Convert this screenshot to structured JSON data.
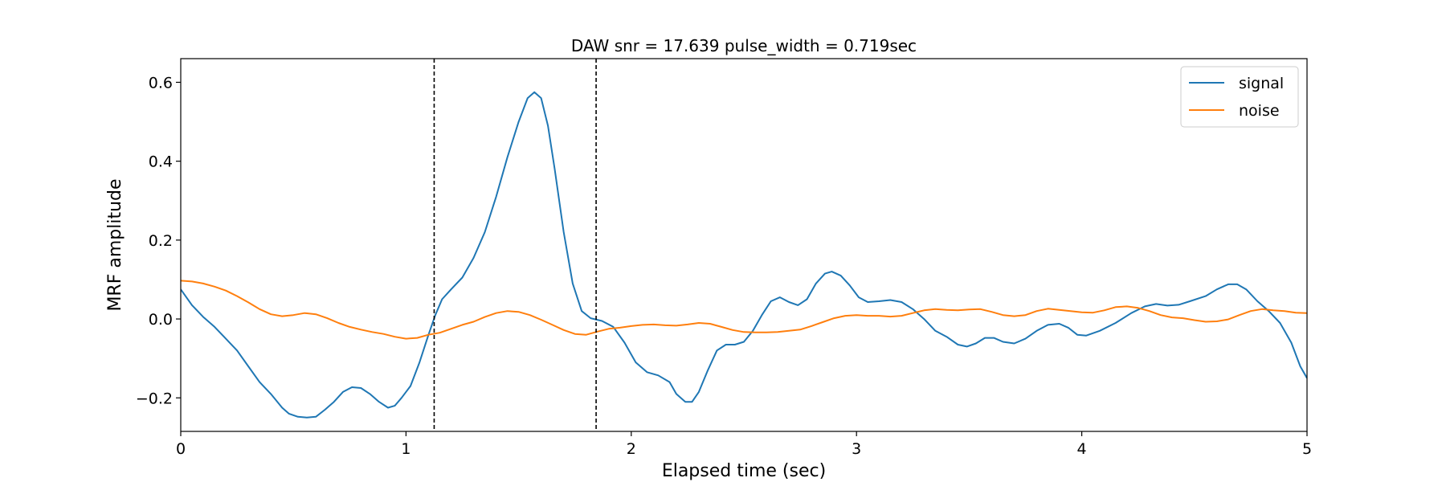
{
  "chart_data": {
    "type": "line",
    "title": "DAW snr = 17.639 pulse_width = 0.719sec",
    "xlabel": "Elapsed time (sec)",
    "ylabel": "MRF amplitude",
    "xlim": [
      0,
      5
    ],
    "ylim": [
      -0.285,
      0.66
    ],
    "x_ticks": [
      0,
      1,
      2,
      3,
      4,
      5
    ],
    "x_tick_labels": [
      "0",
      "1",
      "2",
      "3",
      "4",
      "5"
    ],
    "y_ticks": [
      -0.2,
      0.0,
      0.2,
      0.4,
      0.6
    ],
    "y_tick_labels": [
      "−0.2",
      "0.0",
      "0.2",
      "0.4",
      "0.6"
    ],
    "grid": false,
    "legend_position": "top-right",
    "vlines": [
      1.125,
      1.844
    ],
    "series": [
      {
        "name": "signal",
        "color": "#1f77b4",
        "points": [
          [
            0.0,
            0.075
          ],
          [
            0.05,
            0.035
          ],
          [
            0.1,
            0.005
          ],
          [
            0.15,
            -0.02
          ],
          [
            0.2,
            -0.05
          ],
          [
            0.25,
            -0.08
          ],
          [
            0.3,
            -0.12
          ],
          [
            0.35,
            -0.16
          ],
          [
            0.4,
            -0.19
          ],
          [
            0.45,
            -0.225
          ],
          [
            0.48,
            -0.24
          ],
          [
            0.52,
            -0.248
          ],
          [
            0.56,
            -0.25
          ],
          [
            0.6,
            -0.248
          ],
          [
            0.64,
            -0.23
          ],
          [
            0.68,
            -0.21
          ],
          [
            0.72,
            -0.185
          ],
          [
            0.76,
            -0.173
          ],
          [
            0.8,
            -0.175
          ],
          [
            0.84,
            -0.19
          ],
          [
            0.88,
            -0.21
          ],
          [
            0.92,
            -0.225
          ],
          [
            0.95,
            -0.22
          ],
          [
            0.98,
            -0.2
          ],
          [
            1.02,
            -0.17
          ],
          [
            1.06,
            -0.11
          ],
          [
            1.1,
            -0.04
          ],
          [
            1.13,
            0.01
          ],
          [
            1.16,
            0.05
          ],
          [
            1.2,
            0.075
          ],
          [
            1.25,
            0.105
          ],
          [
            1.3,
            0.155
          ],
          [
            1.35,
            0.22
          ],
          [
            1.4,
            0.31
          ],
          [
            1.45,
            0.41
          ],
          [
            1.5,
            0.5
          ],
          [
            1.54,
            0.56
          ],
          [
            1.57,
            0.575
          ],
          [
            1.6,
            0.56
          ],
          [
            1.63,
            0.49
          ],
          [
            1.66,
            0.38
          ],
          [
            1.7,
            0.22
          ],
          [
            1.74,
            0.09
          ],
          [
            1.78,
            0.02
          ],
          [
            1.82,
            0.002
          ],
          [
            1.87,
            -0.005
          ],
          [
            1.92,
            -0.02
          ],
          [
            1.97,
            -0.06
          ],
          [
            2.02,
            -0.11
          ],
          [
            2.07,
            -0.135
          ],
          [
            2.12,
            -0.143
          ],
          [
            2.17,
            -0.16
          ],
          [
            2.2,
            -0.19
          ],
          [
            2.24,
            -0.21
          ],
          [
            2.27,
            -0.21
          ],
          [
            2.3,
            -0.185
          ],
          [
            2.34,
            -0.13
          ],
          [
            2.38,
            -0.08
          ],
          [
            2.42,
            -0.065
          ],
          [
            2.46,
            -0.065
          ],
          [
            2.5,
            -0.058
          ],
          [
            2.54,
            -0.03
          ],
          [
            2.58,
            0.01
          ],
          [
            2.62,
            0.045
          ],
          [
            2.66,
            0.055
          ],
          [
            2.7,
            0.043
          ],
          [
            2.74,
            0.035
          ],
          [
            2.78,
            0.05
          ],
          [
            2.82,
            0.09
          ],
          [
            2.86,
            0.115
          ],
          [
            2.89,
            0.12
          ],
          [
            2.93,
            0.11
          ],
          [
            2.97,
            0.085
          ],
          [
            3.01,
            0.055
          ],
          [
            3.05,
            0.043
          ],
          [
            3.1,
            0.045
          ],
          [
            3.15,
            0.048
          ],
          [
            3.2,
            0.043
          ],
          [
            3.25,
            0.025
          ],
          [
            3.3,
            0.0
          ],
          [
            3.35,
            -0.03
          ],
          [
            3.4,
            -0.045
          ],
          [
            3.45,
            -0.065
          ],
          [
            3.49,
            -0.07
          ],
          [
            3.53,
            -0.062
          ],
          [
            3.57,
            -0.048
          ],
          [
            3.61,
            -0.048
          ],
          [
            3.65,
            -0.058
          ],
          [
            3.7,
            -0.062
          ],
          [
            3.75,
            -0.05
          ],
          [
            3.8,
            -0.03
          ],
          [
            3.85,
            -0.015
          ],
          [
            3.9,
            -0.012
          ],
          [
            3.94,
            -0.022
          ],
          [
            3.98,
            -0.04
          ],
          [
            4.02,
            -0.042
          ],
          [
            4.08,
            -0.03
          ],
          [
            4.15,
            -0.01
          ],
          [
            4.22,
            0.015
          ],
          [
            4.28,
            0.032
          ],
          [
            4.33,
            0.038
          ],
          [
            4.38,
            0.034
          ],
          [
            4.43,
            0.036
          ],
          [
            4.48,
            0.045
          ],
          [
            4.55,
            0.058
          ],
          [
            4.6,
            0.075
          ],
          [
            4.65,
            0.088
          ],
          [
            4.69,
            0.088
          ],
          [
            4.73,
            0.075
          ],
          [
            4.78,
            0.045
          ],
          [
            4.83,
            0.02
          ],
          [
            4.88,
            -0.01
          ],
          [
            4.93,
            -0.06
          ],
          [
            4.97,
            -0.12
          ],
          [
            5.0,
            -0.15
          ]
        ]
      },
      {
        "name": "noise",
        "color": "#ff7f0e",
        "points": [
          [
            0.0,
            0.097
          ],
          [
            0.05,
            0.095
          ],
          [
            0.1,
            0.09
          ],
          [
            0.15,
            0.082
          ],
          [
            0.2,
            0.072
          ],
          [
            0.25,
            0.058
          ],
          [
            0.3,
            0.042
          ],
          [
            0.35,
            0.025
          ],
          [
            0.4,
            0.012
          ],
          [
            0.45,
            0.007
          ],
          [
            0.5,
            0.01
          ],
          [
            0.55,
            0.015
          ],
          [
            0.6,
            0.012
          ],
          [
            0.65,
            0.002
          ],
          [
            0.7,
            -0.01
          ],
          [
            0.75,
            -0.02
          ],
          [
            0.8,
            -0.027
          ],
          [
            0.85,
            -0.033
          ],
          [
            0.9,
            -0.038
          ],
          [
            0.95,
            -0.045
          ],
          [
            1.0,
            -0.05
          ],
          [
            1.05,
            -0.048
          ],
          [
            1.1,
            -0.04
          ],
          [
            1.15,
            -0.035
          ],
          [
            1.2,
            -0.025
          ],
          [
            1.25,
            -0.015
          ],
          [
            1.3,
            -0.007
          ],
          [
            1.35,
            0.005
          ],
          [
            1.4,
            0.015
          ],
          [
            1.45,
            0.02
          ],
          [
            1.5,
            0.018
          ],
          [
            1.55,
            0.01
          ],
          [
            1.6,
            -0.002
          ],
          [
            1.65,
            -0.015
          ],
          [
            1.7,
            -0.028
          ],
          [
            1.75,
            -0.038
          ],
          [
            1.8,
            -0.04
          ],
          [
            1.85,
            -0.032
          ],
          [
            1.9,
            -0.025
          ],
          [
            1.95,
            -0.022
          ],
          [
            2.0,
            -0.018
          ],
          [
            2.05,
            -0.015
          ],
          [
            2.1,
            -0.014
          ],
          [
            2.15,
            -0.016
          ],
          [
            2.2,
            -0.017
          ],
          [
            2.25,
            -0.014
          ],
          [
            2.3,
            -0.01
          ],
          [
            2.35,
            -0.012
          ],
          [
            2.4,
            -0.02
          ],
          [
            2.45,
            -0.028
          ],
          [
            2.5,
            -0.033
          ],
          [
            2.55,
            -0.034
          ],
          [
            2.6,
            -0.034
          ],
          [
            2.65,
            -0.033
          ],
          [
            2.7,
            -0.03
          ],
          [
            2.75,
            -0.027
          ],
          [
            2.8,
            -0.018
          ],
          [
            2.85,
            -0.008
          ],
          [
            2.9,
            0.002
          ],
          [
            2.95,
            0.008
          ],
          [
            3.0,
            0.01
          ],
          [
            3.05,
            0.008
          ],
          [
            3.1,
            0.008
          ],
          [
            3.15,
            0.006
          ],
          [
            3.2,
            0.008
          ],
          [
            3.25,
            0.015
          ],
          [
            3.3,
            0.022
          ],
          [
            3.35,
            0.025
          ],
          [
            3.4,
            0.023
          ],
          [
            3.45,
            0.022
          ],
          [
            3.5,
            0.024
          ],
          [
            3.55,
            0.025
          ],
          [
            3.6,
            0.018
          ],
          [
            3.65,
            0.01
          ],
          [
            3.7,
            0.007
          ],
          [
            3.75,
            0.01
          ],
          [
            3.8,
            0.02
          ],
          [
            3.85,
            0.026
          ],
          [
            3.9,
            0.023
          ],
          [
            3.95,
            0.02
          ],
          [
            4.0,
            0.017
          ],
          [
            4.05,
            0.016
          ],
          [
            4.1,
            0.022
          ],
          [
            4.15,
            0.03
          ],
          [
            4.2,
            0.032
          ],
          [
            4.25,
            0.028
          ],
          [
            4.3,
            0.02
          ],
          [
            4.35,
            0.01
          ],
          [
            4.4,
            0.004
          ],
          [
            4.45,
            0.002
          ],
          [
            4.5,
            -0.003
          ],
          [
            4.55,
            -0.007
          ],
          [
            4.6,
            -0.006
          ],
          [
            4.65,
            -0.001
          ],
          [
            4.7,
            0.01
          ],
          [
            4.75,
            0.02
          ],
          [
            4.8,
            0.025
          ],
          [
            4.85,
            0.022
          ],
          [
            4.9,
            0.02
          ],
          [
            4.95,
            0.016
          ],
          [
            5.0,
            0.015
          ]
        ]
      }
    ]
  }
}
